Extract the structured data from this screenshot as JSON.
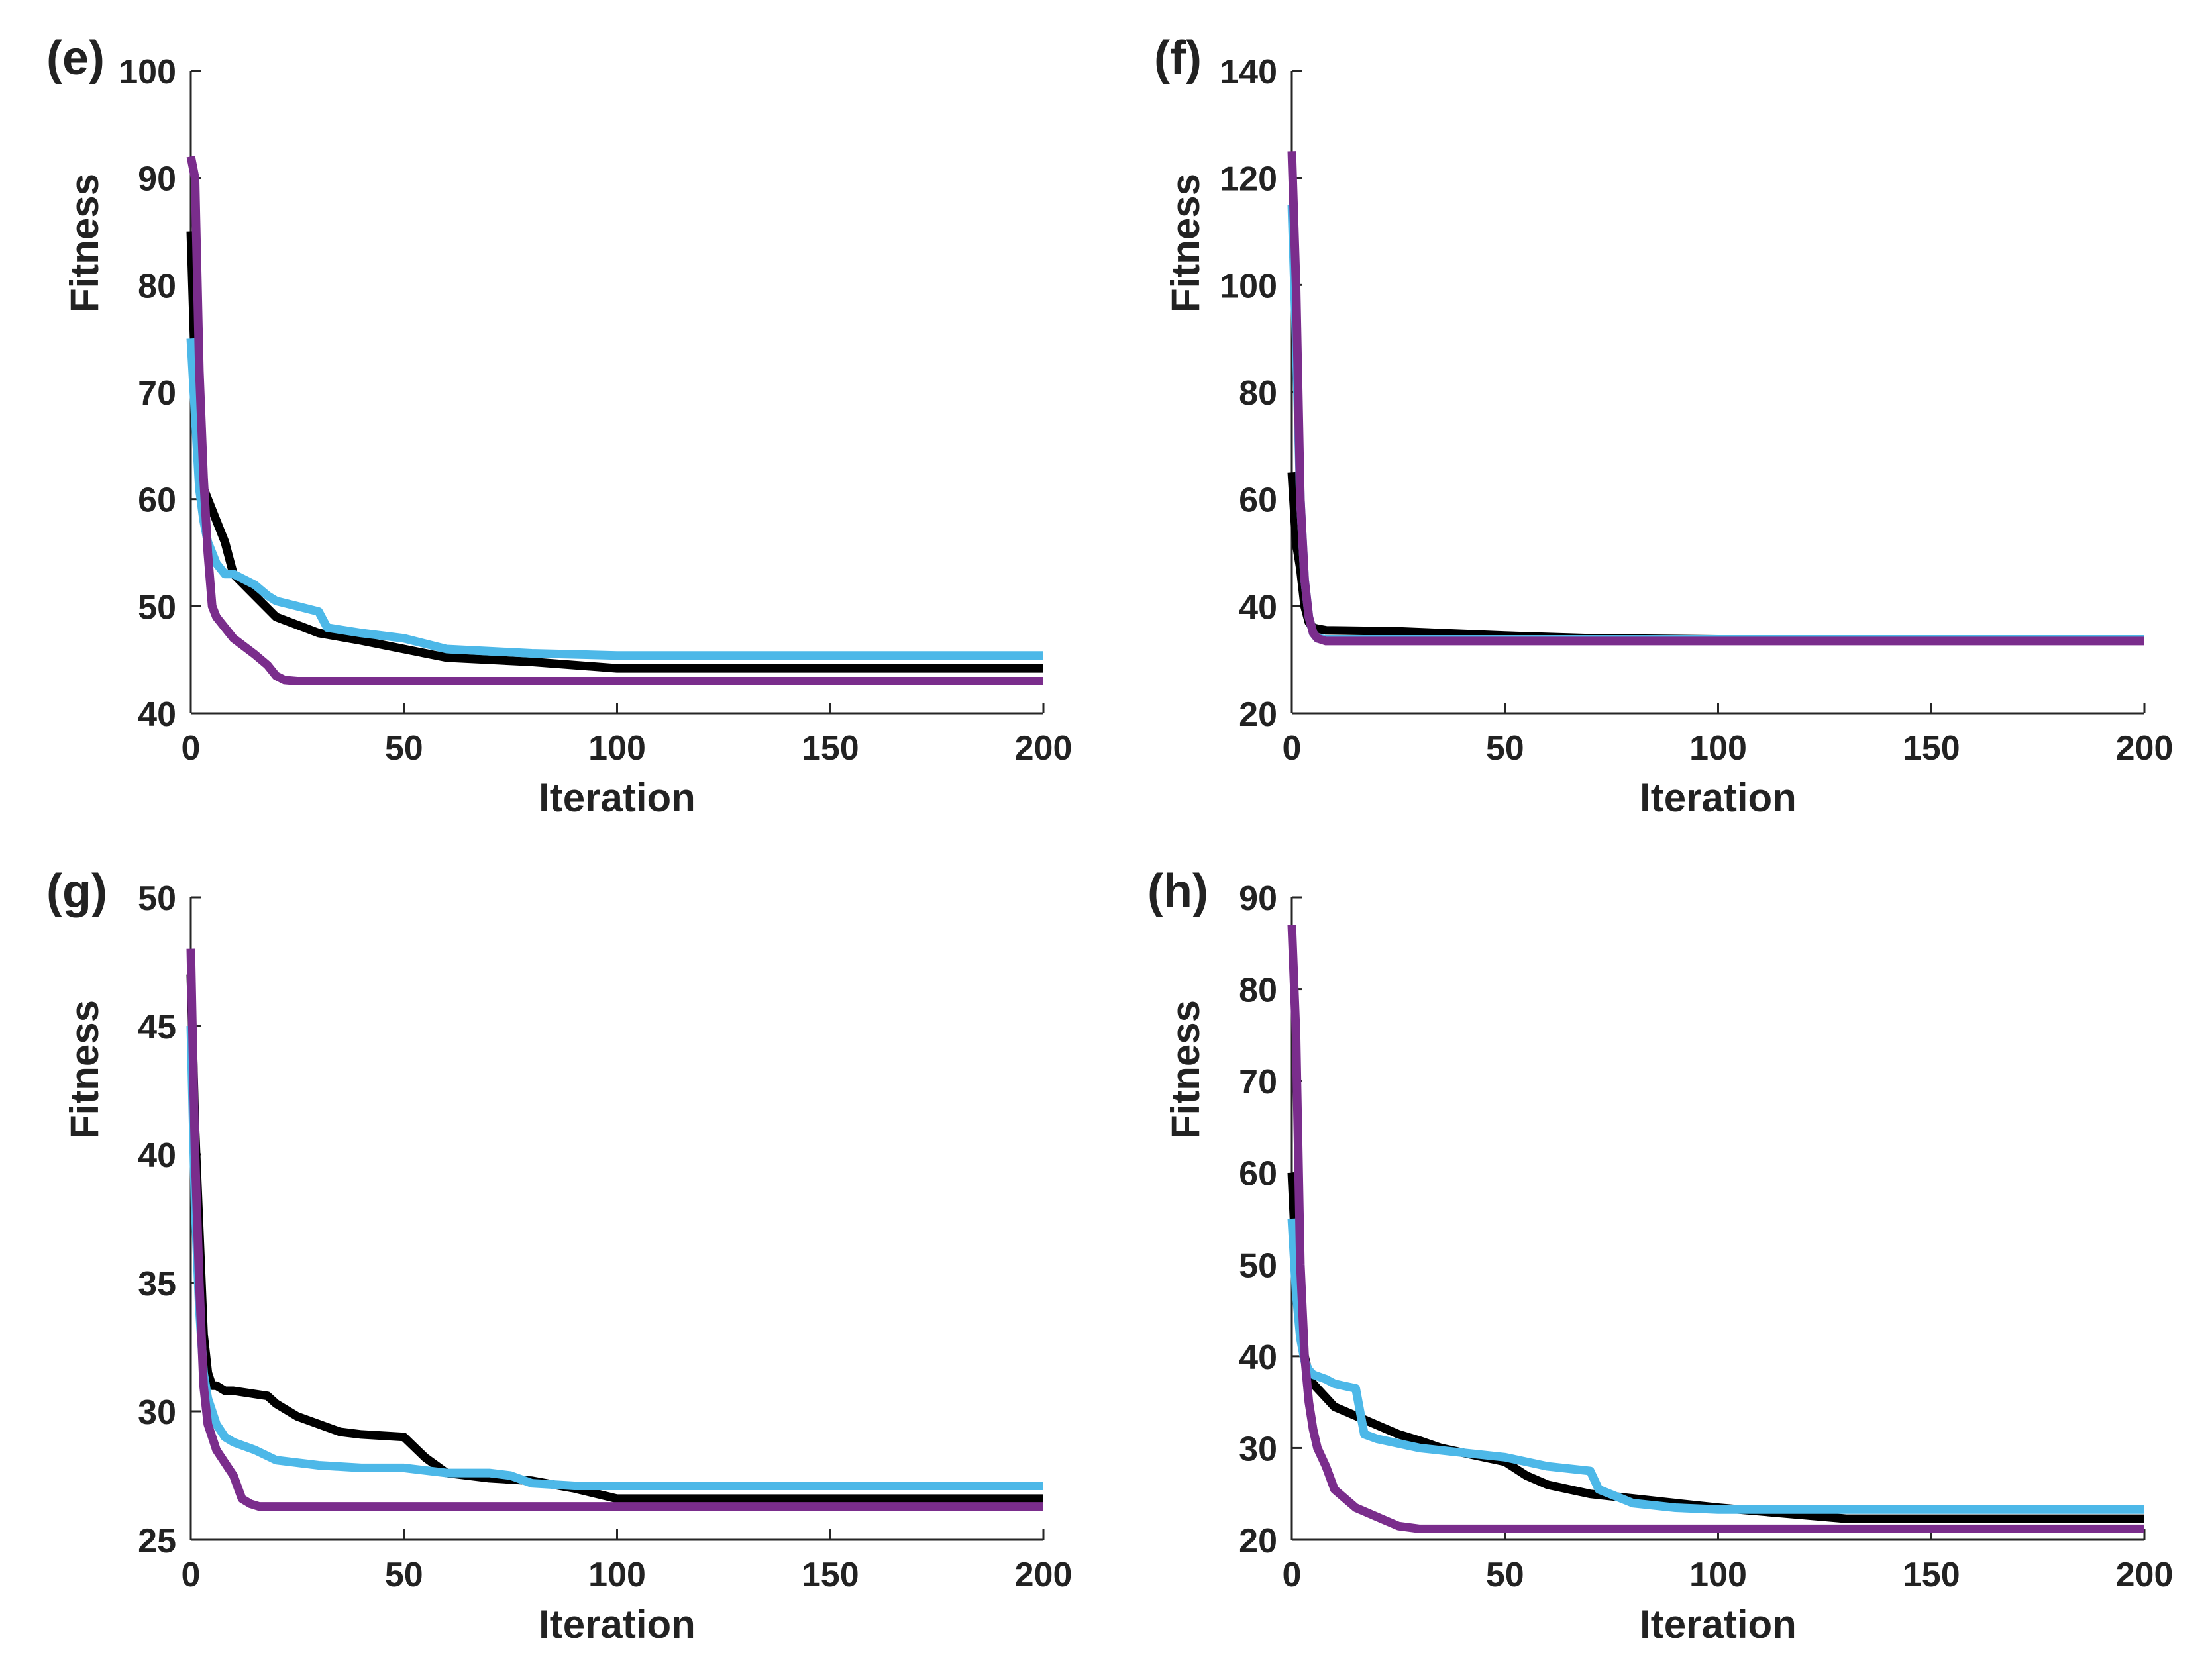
{
  "chart_data": [
    {
      "type": "line",
      "panel_label": "(e)",
      "xlabel": "Iteration",
      "ylabel": "Fitness",
      "xlim": [
        0,
        200
      ],
      "ylim": [
        40,
        100
      ],
      "xticks": [
        0,
        50,
        100,
        150,
        200
      ],
      "yticks": [
        40,
        50,
        60,
        70,
        80,
        90,
        100
      ],
      "series": [
        {
          "color": "#000000",
          "x": [
            0,
            1,
            2,
            3,
            4,
            6,
            8,
            10,
            15,
            20,
            30,
            40,
            60,
            80,
            100,
            150,
            200
          ],
          "y": [
            85,
            72,
            63,
            61,
            60,
            58,
            56,
            53,
            51,
            49,
            47.5,
            46.8,
            45.2,
            44.8,
            44.2,
            44.2,
            44.2
          ]
        },
        {
          "color": "#4db8e8",
          "x": [
            0,
            1,
            2,
            3,
            4,
            6,
            8,
            10,
            15,
            18,
            20,
            25,
            30,
            32,
            40,
            50,
            60,
            70,
            80,
            100,
            150,
            200
          ],
          "y": [
            75,
            68,
            61,
            58,
            56,
            54,
            53,
            53,
            52,
            51,
            50.5,
            50,
            49.5,
            48,
            47.5,
            47,
            46,
            45.8,
            45.6,
            45.4,
            45.4,
            45.4
          ]
        },
        {
          "color": "#7a2d8c",
          "x": [
            0,
            1,
            2,
            3,
            4,
            5,
            6,
            8,
            10,
            15,
            18,
            20,
            22,
            25,
            40,
            100,
            200
          ],
          "y": [
            92,
            90,
            72,
            62,
            55,
            50,
            49,
            48,
            47,
            45.5,
            44.5,
            43.5,
            43.1,
            43,
            43,
            43,
            43
          ]
        }
      ]
    },
    {
      "type": "line",
      "panel_label": "(f)",
      "xlabel": "Iteration",
      "ylabel": "Fitness",
      "xlim": [
        0,
        200
      ],
      "ylim": [
        20,
        140
      ],
      "xticks": [
        0,
        50,
        100,
        150,
        200
      ],
      "yticks": [
        20,
        40,
        60,
        80,
        100,
        120,
        140
      ],
      "series": [
        {
          "color": "#000000",
          "x": [
            0,
            1,
            2,
            3,
            4,
            5,
            6,
            8,
            25,
            50,
            70,
            100,
            200
          ],
          "y": [
            65,
            52,
            47,
            40,
            37,
            36,
            35.8,
            35.5,
            35.3,
            34.5,
            34,
            33.8,
            33.8
          ]
        },
        {
          "color": "#4db8e8",
          "x": [
            0,
            1,
            2,
            3,
            4,
            5,
            6,
            8,
            50,
            100,
            200
          ],
          "y": [
            115,
            90,
            60,
            45,
            38,
            35,
            34,
            33.8,
            33.8,
            33.8,
            33.8
          ]
        },
        {
          "color": "#7a2d8c",
          "x": [
            0,
            1,
            2,
            3,
            4,
            5,
            6,
            8,
            50,
            100,
            200
          ],
          "y": [
            125,
            100,
            60,
            45,
            38,
            35,
            34,
            33.5,
            33.5,
            33.5,
            33.5
          ]
        }
      ]
    },
    {
      "type": "line",
      "panel_label": "(g)",
      "xlabel": "Iteration",
      "ylabel": "Fitness",
      "xlim": [
        0,
        200
      ],
      "ylim": [
        25,
        50
      ],
      "xticks": [
        0,
        50,
        100,
        150,
        200
      ],
      "yticks": [
        25,
        30,
        35,
        40,
        45,
        50
      ],
      "series": [
        {
          "color": "#000000",
          "x": [
            0,
            1,
            2,
            3,
            4,
            5,
            6,
            8,
            10,
            18,
            20,
            25,
            30,
            35,
            40,
            50,
            55,
            60,
            70,
            80,
            90,
            100,
            150,
            200
          ],
          "y": [
            47,
            41,
            37,
            33,
            31.5,
            31,
            31,
            30.8,
            30.8,
            30.6,
            30.3,
            29.8,
            29.5,
            29.2,
            29.1,
            29,
            28.2,
            27.6,
            27.4,
            27.3,
            27,
            26.6,
            26.6,
            26.6
          ]
        },
        {
          "color": "#4db8e8",
          "x": [
            0,
            1,
            2,
            3,
            4,
            5,
            6,
            8,
            10,
            15,
            20,
            30,
            40,
            50,
            60,
            70,
            75,
            80,
            90,
            100,
            150,
            200
          ],
          "y": [
            45,
            38,
            34,
            31.5,
            30.5,
            30,
            29.5,
            29,
            28.8,
            28.5,
            28.1,
            27.9,
            27.8,
            27.8,
            27.6,
            27.6,
            27.5,
            27.2,
            27.1,
            27.1,
            27.1,
            27.1
          ]
        },
        {
          "color": "#7a2d8c",
          "x": [
            0,
            1,
            2,
            3,
            4,
            5,
            6,
            8,
            10,
            12,
            14,
            16,
            20,
            50,
            100,
            200
          ],
          "y": [
            48,
            40,
            35,
            31,
            29.5,
            29,
            28.5,
            28,
            27.5,
            26.6,
            26.4,
            26.3,
            26.3,
            26.3,
            26.3,
            26.3
          ]
        }
      ]
    },
    {
      "type": "line",
      "panel_label": "(h)",
      "xlabel": "Iteration",
      "ylabel": "Fitness",
      "xlim": [
        0,
        200
      ],
      "ylim": [
        20,
        90
      ],
      "xticks": [
        0,
        50,
        100,
        150,
        200
      ],
      "yticks": [
        20,
        30,
        40,
        50,
        60,
        70,
        80,
        90
      ],
      "series": [
        {
          "color": "#000000",
          "x": [
            0,
            1,
            2,
            3,
            4,
            5,
            8,
            10,
            15,
            20,
            25,
            30,
            35,
            40,
            50,
            55,
            60,
            70,
            80,
            90,
            100,
            130,
            150,
            200
          ],
          "y": [
            60,
            50,
            44,
            40,
            38,
            37,
            35.5,
            34.5,
            33.5,
            32.5,
            31.5,
            30.8,
            30,
            29.5,
            28.5,
            27,
            26,
            25,
            24.5,
            24,
            23.5,
            22.3,
            22.3,
            22.3
          ]
        },
        {
          "color": "#4db8e8",
          "x": [
            0,
            1,
            2,
            3,
            4,
            5,
            8,
            10,
            15,
            17,
            20,
            25,
            30,
            40,
            50,
            55,
            60,
            70,
            72,
            80,
            90,
            100,
            150,
            200
          ],
          "y": [
            55,
            47,
            42,
            39.5,
            38.5,
            38,
            37.5,
            37,
            36.5,
            31.5,
            31,
            30.5,
            30,
            29.5,
            29,
            28.5,
            28,
            27.5,
            25.5,
            24,
            23.5,
            23.3,
            23.3,
            23.3
          ]
        },
        {
          "color": "#7a2d8c",
          "x": [
            0,
            1,
            2,
            3,
            4,
            5,
            6,
            8,
            10,
            15,
            20,
            25,
            30,
            50,
            100,
            200
          ],
          "y": [
            87,
            75,
            50,
            40,
            35,
            32,
            30,
            28,
            25.5,
            23.5,
            22.5,
            21.5,
            21.2,
            21.2,
            21.2,
            21.2
          ]
        }
      ]
    }
  ]
}
